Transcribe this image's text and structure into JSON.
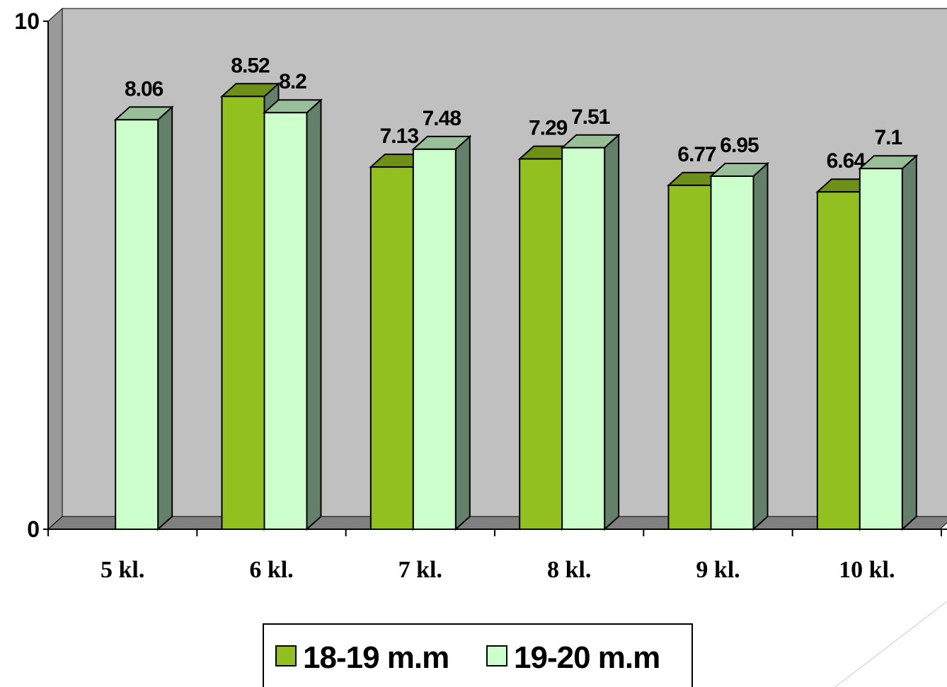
{
  "chart_data": {
    "type": "bar",
    "categories": [
      "5 kl.",
      "6 kl.",
      "7 kl.",
      "8 kl.",
      "9 kl.",
      "10 kl."
    ],
    "series": [
      {
        "name": "18-19 m.m",
        "color": "#93c021",
        "values": [
          null,
          8.52,
          7.13,
          7.29,
          6.77,
          6.64
        ]
      },
      {
        "name": "19-20 m.m",
        "color": "#ccffcc",
        "values": [
          8.06,
          8.2,
          7.48,
          7.51,
          6.95,
          7.1
        ]
      }
    ],
    "ylim": [
      0,
      10
    ],
    "yticks": [
      0,
      10
    ],
    "legend": "bottom"
  }
}
